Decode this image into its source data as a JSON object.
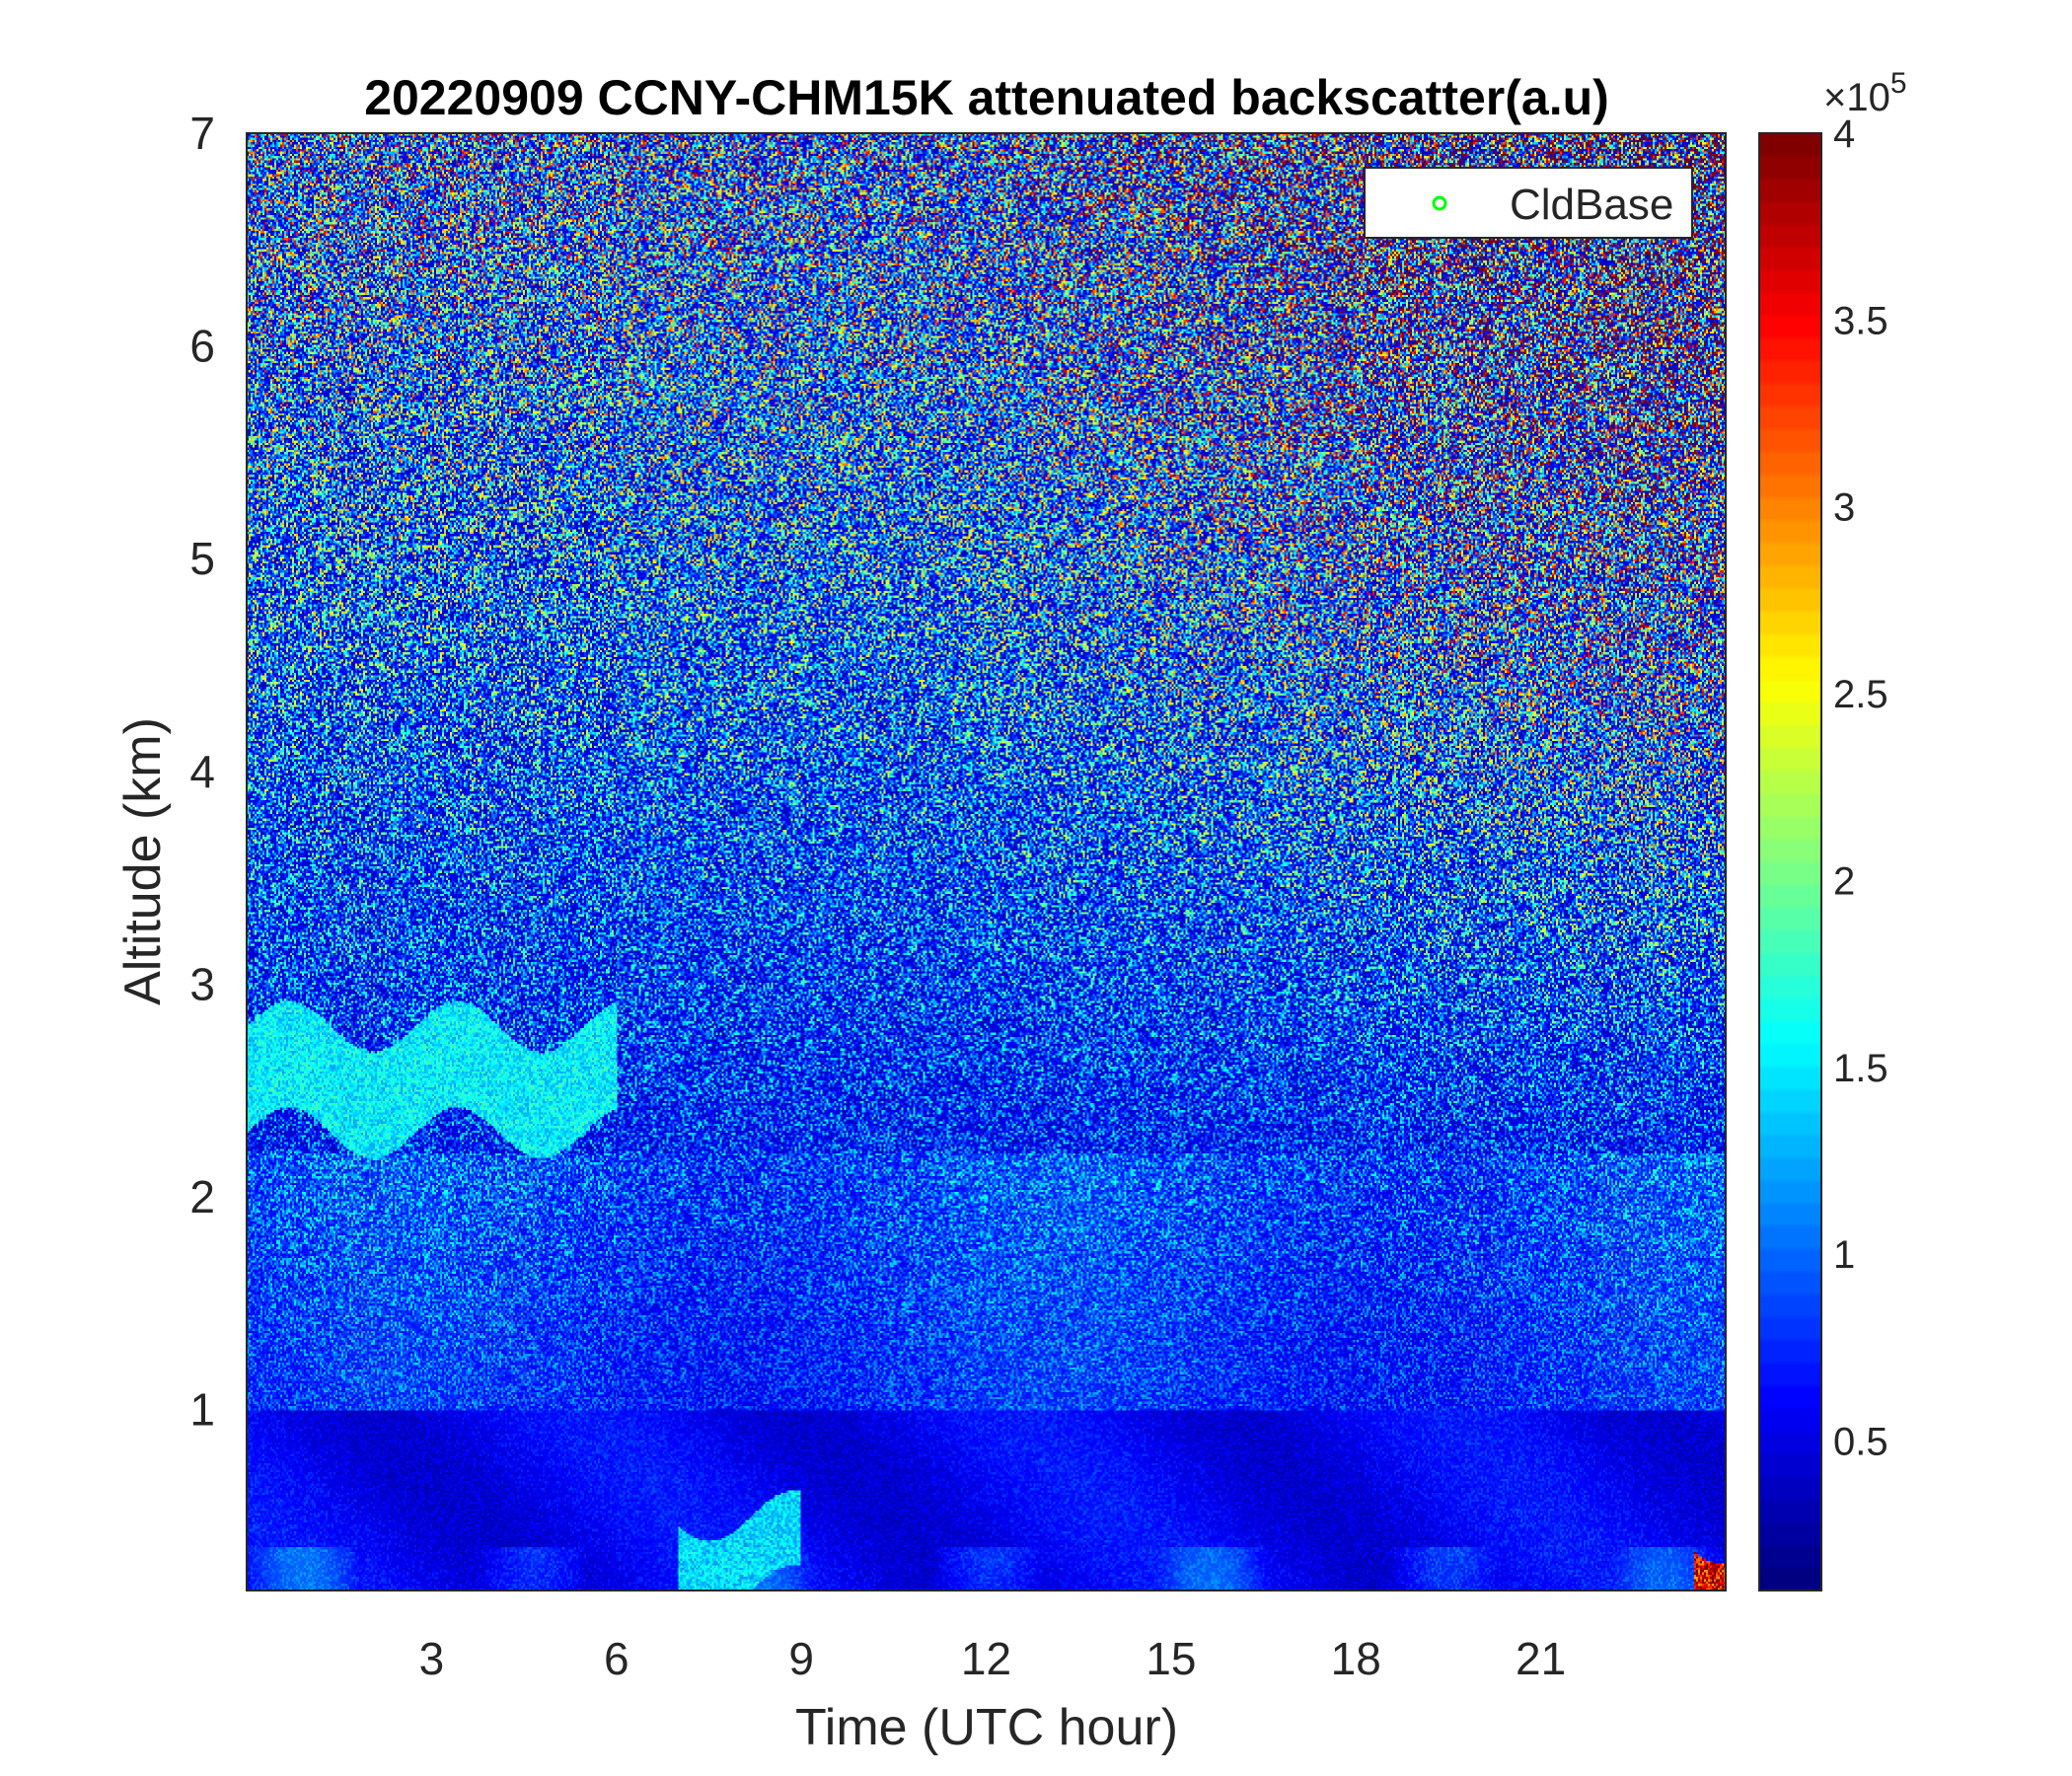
{
  "chart_data": {
    "type": "heatmap",
    "title": "20220909 CCNY-CHM15K attenuated backscatter(a.u)",
    "xlabel": "Time (UTC hour)",
    "ylabel": "Altitude (km)",
    "xlim": [
      0,
      24
    ],
    "ylim": [
      0.15,
      7
    ],
    "x_ticks": [
      3,
      6,
      9,
      12,
      15,
      18,
      21
    ],
    "x_tick_labels": [
      "3",
      "6",
      "9",
      "12",
      "15",
      "18",
      "21"
    ],
    "y_ticks": [
      1,
      2,
      3,
      4,
      5,
      6,
      7
    ],
    "y_tick_labels": [
      "1",
      "2",
      "3",
      "4",
      "5",
      "6",
      "7"
    ],
    "colorbar": {
      "colormap": "jet",
      "range": [
        0.1,
        4
      ],
      "ticks": [
        0.5,
        1,
        1.5,
        2,
        2.5,
        3,
        3.5,
        4
      ],
      "tick_labels": [
        "0.5",
        "1",
        "1.5",
        "2",
        "2.5",
        "3",
        "3.5",
        "4"
      ],
      "multiplier_base": "×10",
      "multiplier_exponent": "5"
    },
    "legend": {
      "placement": "top-right",
      "entries": [
        {
          "name": "CldBase",
          "marker": "circle",
          "color": "#00ff00"
        }
      ]
    },
    "features": [
      {
        "name": "aerosol layer",
        "x_range": [
          0,
          6
        ],
        "y_range": [
          2.3,
          2.8
        ],
        "value": 1.6
      },
      {
        "name": "near-surface layer",
        "x_range": [
          7,
          9
        ],
        "y_range": [
          0.15,
          0.5
        ],
        "value": 1.5
      },
      {
        "name": "surface peak",
        "x_range": [
          23.5,
          24
        ],
        "y_range": [
          0.15,
          0.4
        ],
        "value": 3.8
      }
    ]
  }
}
